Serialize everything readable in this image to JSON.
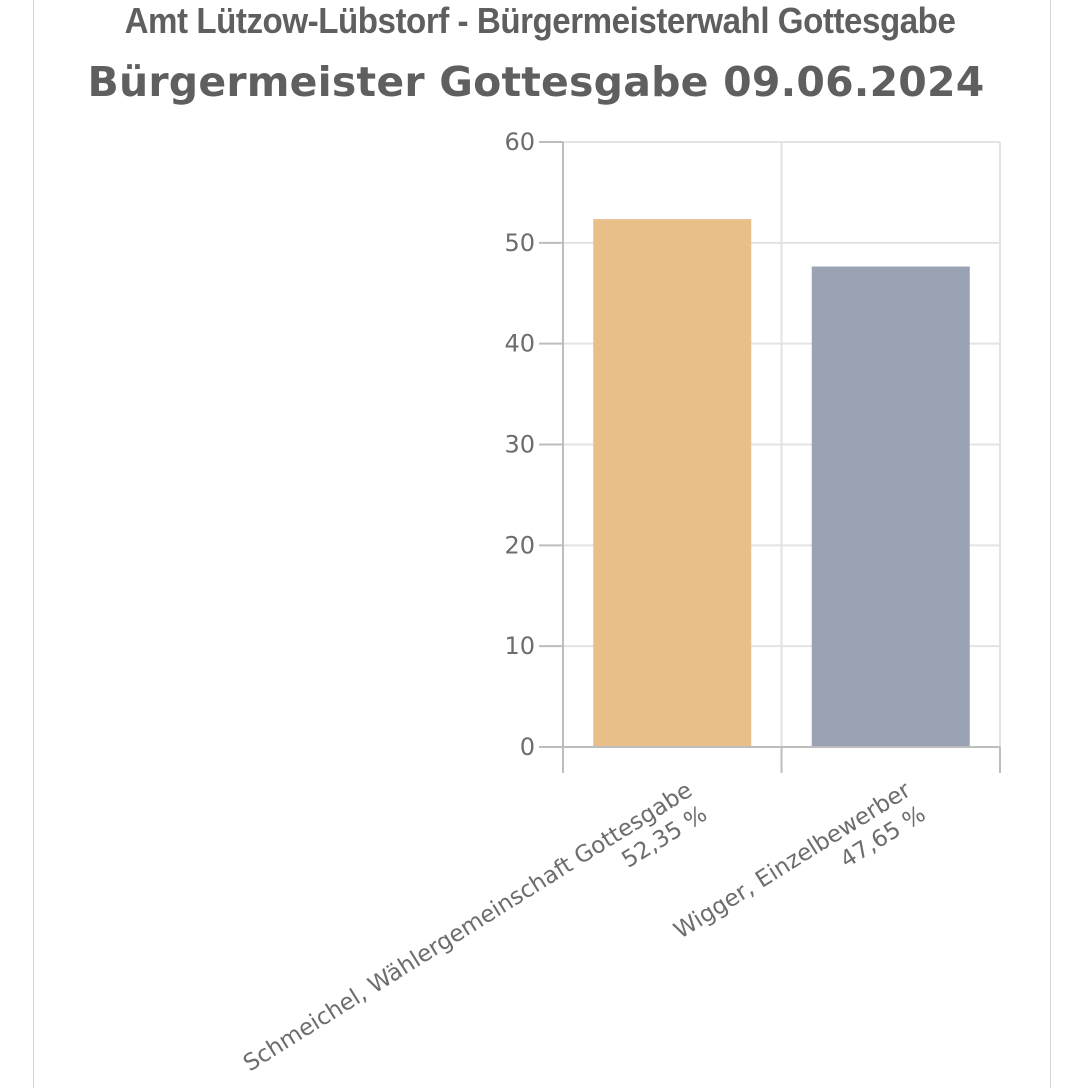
{
  "header": {
    "title": "Amt Lützow-Lübstorf - Bürgermeisterwahl Gottesgabe",
    "subtitle": "Bürgermeister Gottesgabe 09.06.2024"
  },
  "chart_data": {
    "type": "bar",
    "categories": [
      [
        "Schmeichel, Wählergemeinschaft Gottesgabe",
        "52,35 %"
      ],
      [
        "Wigger, Einzelbewerber",
        "47,65 %"
      ]
    ],
    "values": [
      52.35,
      47.65
    ],
    "colors": [
      "#e8be89",
      "#9aa3b4"
    ],
    "ylim": [
      0,
      60
    ],
    "yticks": [
      "0",
      "10",
      "20",
      "30",
      "40",
      "50",
      "60"
    ],
    "grid": true,
    "title": "Bürgermeister Gottesgabe 09.06.2024",
    "xlabel": "",
    "ylabel": ""
  }
}
